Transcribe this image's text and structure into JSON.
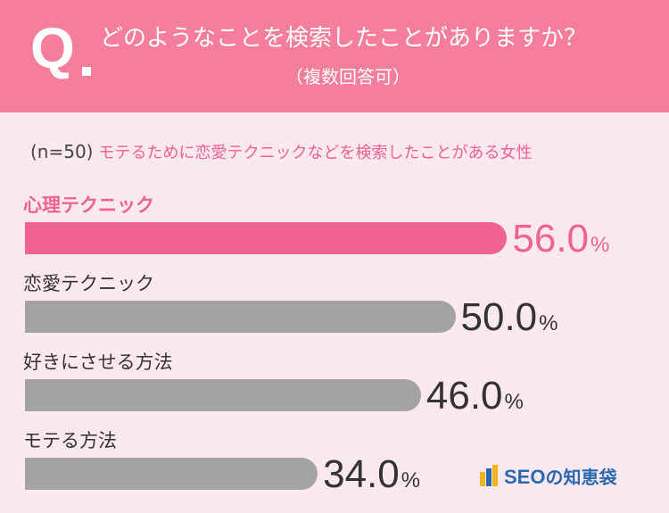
{
  "header": {
    "q_letter": "Q",
    "question": "どのようなことを検索したことがありますか？",
    "sub": "（複数回答可）"
  },
  "sample": {
    "n": "(n=50)",
    "description": "モテるために恋愛テクニックなどを検索したことがある女性"
  },
  "colors": {
    "header_bg": "#f47e9b",
    "page_bg": "#fce9f0",
    "highlight": "#f0628f",
    "bar_gray": "#a3a3a6",
    "value_dark": "#333333"
  },
  "chart_data": {
    "type": "bar",
    "orientation": "horizontal",
    "categories": [
      "心理テクニック",
      "恋愛テクニック",
      "好きにさせる方法",
      "モテる方法"
    ],
    "values": [
      56.0,
      50.0,
      46.0,
      34.0
    ],
    "value_labels": [
      "56.0",
      "50.0",
      "46.0",
      "34.0"
    ],
    "unit": "%",
    "highlight_index": 0,
    "xlim": [
      0,
      100
    ]
  },
  "logo": {
    "text": "SEO",
    "text_jp": "の知恵袋"
  }
}
